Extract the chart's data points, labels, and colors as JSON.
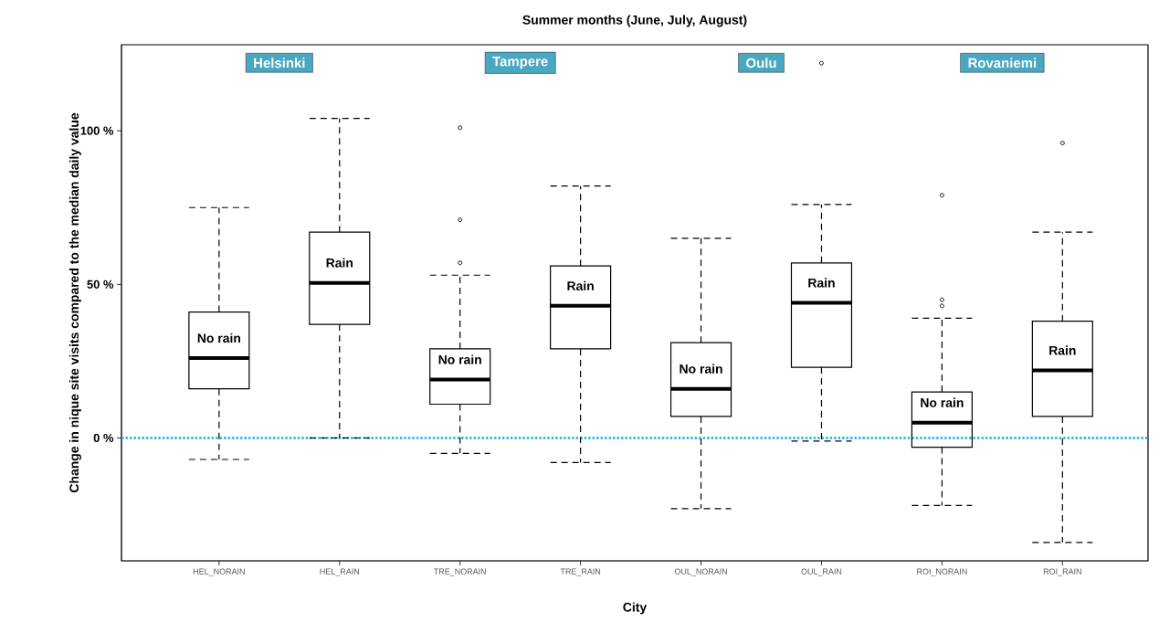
{
  "chart_data": {
    "type": "box",
    "title": "Summer months (June, July, August)",
    "xlabel": "City",
    "ylabel": "Change in nique site visits compared to the median daily value",
    "categories": [
      "HEL_NORAIN",
      "HEL_RAIN",
      "TRE_NORAIN",
      "TRE_RAIN",
      "OUL_NORAIN",
      "OUL_RAIN",
      "ROI_NORAIN",
      "ROI_RAIN"
    ],
    "boxes": [
      {
        "low": -7,
        "q1": 16,
        "median": 26,
        "q3": 41,
        "high": 75
      },
      {
        "low": 0,
        "q1": 37,
        "median": 50.5,
        "q3": 67,
        "high": 104
      },
      {
        "low": -5,
        "q1": 11,
        "median": 19,
        "q3": 29,
        "high": 53,
        "outliers": [
          101,
          71,
          57
        ]
      },
      {
        "low": -8,
        "q1": 29,
        "median": 43,
        "q3": 56,
        "high": 82
      },
      {
        "low": -23,
        "q1": 7,
        "median": 16,
        "q3": 31,
        "high": 65
      },
      {
        "low": -1,
        "q1": 23,
        "median": 44,
        "q3": 57,
        "high": 76,
        "outliers": [
          122
        ]
      },
      {
        "low": -22,
        "q1": -3,
        "median": 5,
        "q3": 15,
        "high": 39,
        "outliers": [
          79,
          45,
          43
        ]
      },
      {
        "low": -34,
        "q1": 7,
        "median": 22,
        "q3": 38,
        "high": 67,
        "outliers": [
          96
        ]
      }
    ],
    "ylim": [
      -40,
      128
    ],
    "yticks": [
      {
        "value": 0,
        "label": "0 %"
      },
      {
        "value": 50,
        "label": "50 %"
      },
      {
        "value": 100,
        "label": "100 %"
      }
    ],
    "ref_lines": [
      {
        "axis": "y",
        "value": 0,
        "color": "#1ab0e8",
        "line_style": "dotted"
      }
    ],
    "marker": "circle",
    "grid": false,
    "annotations": [
      "Helsinki",
      "Tampere",
      "Oulu",
      "Rovaniemi",
      "No rain",
      "Rain",
      "No rain",
      "Rain",
      "No rain",
      "Rain",
      "No rain",
      "Rain"
    ]
  }
}
